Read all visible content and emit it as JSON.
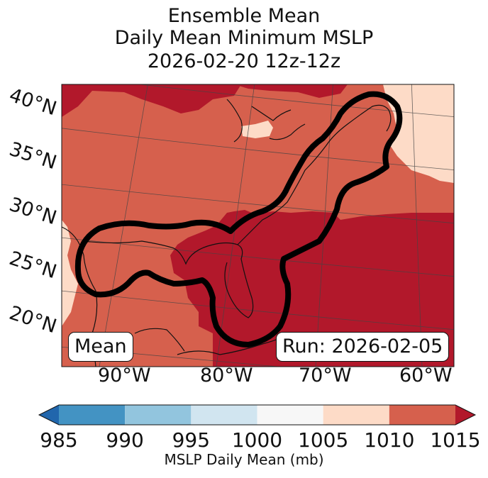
{
  "title": {
    "line1": "Ensemble Mean",
    "line2": "Daily Mean Minimum MSLP",
    "line3": "2026-02-20 12z-12z"
  },
  "latitude_labels": [
    "40°N",
    "35°N",
    "30°N",
    "25°N",
    "20°N"
  ],
  "longitude_labels": [
    "90°W",
    "80°W",
    "70°W",
    "60°W"
  ],
  "boxes": {
    "left": "Mean",
    "right": "Run: 2026-02-05"
  },
  "colorbar": {
    "label": "MSLP Daily Mean (mb)",
    "ticks": [
      "985",
      "990",
      "995",
      "1000",
      "1005",
      "1010",
      "1015"
    ],
    "bins": [
      {
        "from": 985,
        "to": 990,
        "color": "#4393c3"
      },
      {
        "from": 990,
        "to": 995,
        "color": "#92c5de"
      },
      {
        "from": 995,
        "to": 1000,
        "color": "#d1e5f0"
      },
      {
        "from": 1000,
        "to": 1005,
        "color": "#f7f7f7"
      },
      {
        "from": 1005,
        "to": 1010,
        "color": "#fddbc7"
      },
      {
        "from": 1010,
        "to": 1015,
        "color": "#d6604d"
      }
    ],
    "under_color": "#2166ac",
    "over_color": "#b2182b"
  },
  "field_colors": {
    "high": "#b2182b",
    "mid": "#d6604d",
    "low": "#fddbc7"
  }
}
